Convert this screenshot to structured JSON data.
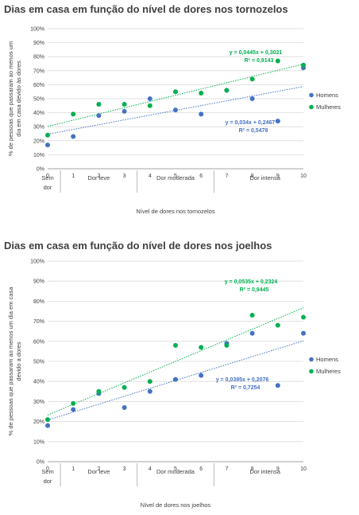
{
  "chart_data": [
    {
      "type": "scatter",
      "title": "Dias em casa em função do nível de dores nos tornozelos",
      "xlabel": "Nível de dores nos tornozelos",
      "ylabel": "% de pessoas que passaram ao menos um dia em casa devido às dores",
      "xlim": [
        0,
        10
      ],
      "ylim": [
        0,
        100
      ],
      "y_ticks": [
        "0%",
        "10%",
        "20%",
        "30%",
        "40%",
        "50%",
        "60%",
        "70%",
        "80%",
        "90%",
        "100%"
      ],
      "x_ticks": [
        "0",
        "1",
        "2",
        "3",
        "4",
        "5",
        "6",
        "7",
        "8",
        "9",
        "10"
      ],
      "categories": [
        "Sem dor",
        "Dor leve",
        "Dor moderada",
        "Dor intensa"
      ],
      "grid": true,
      "legend": "right",
      "series": [
        {
          "name": "Homens",
          "color": "#4472C4",
          "x": [
            0,
            1,
            2,
            3,
            4,
            5,
            6,
            7,
            8,
            9,
            10
          ],
          "y": [
            17,
            23,
            38,
            41,
            50,
            42,
            39,
            56,
            50,
            34,
            72
          ],
          "equation": "y = 0,034x + 0,2467",
          "r2": "R² = 0,5478",
          "trend": [
            0.034,
            0.2467
          ]
        },
        {
          "name": "Mulheres",
          "color": "#00B050",
          "x": [
            0,
            1,
            2,
            3,
            4,
            5,
            6,
            7,
            8,
            9,
            10
          ],
          "y": [
            24,
            39,
            46,
            46,
            45,
            55,
            54,
            56,
            64,
            77,
            74
          ],
          "equation": "y = 0,0445x + 0,3021",
          "r2": "R² = 0,9143",
          "trend": [
            0.0445,
            0.3021
          ]
        }
      ]
    },
    {
      "type": "scatter",
      "title": "Dias em casa em função do nível de dores nos joelhos",
      "xlabel": "Nível de dores nos joelhos",
      "ylabel": "% de pessoas que passaram ao menos um dia em casa devido a dores",
      "xlim": [
        0,
        10
      ],
      "ylim": [
        0,
        100
      ],
      "y_ticks": [
        "0%",
        "10%",
        "20%",
        "30%",
        "40%",
        "50%",
        "60%",
        "70%",
        "80%",
        "90%",
        "100%"
      ],
      "x_ticks": [
        "0",
        "1",
        "2",
        "3",
        "4",
        "5",
        "6",
        "7",
        "8",
        "9",
        "10"
      ],
      "categories": [
        "Sem dor",
        "Dor leve",
        "Dor moderada",
        "Dor intensa"
      ],
      "grid": true,
      "legend": "right",
      "series": [
        {
          "name": "Homens",
          "color": "#4472C4",
          "x": [
            0,
            1,
            2,
            3,
            4,
            5,
            6,
            7,
            8,
            9,
            10
          ],
          "y": [
            18,
            26,
            34,
            27,
            35,
            41,
            43,
            59,
            64,
            38,
            64
          ],
          "equation": "y = 0,0395x + 0,2076",
          "r2": "R² = 0,7254",
          "trend": [
            0.0395,
            0.2076
          ]
        },
        {
          "name": "Mulheres",
          "color": "#00B050",
          "x": [
            0,
            1,
            2,
            3,
            4,
            5,
            6,
            7,
            8,
            9,
            10
          ],
          "y": [
            21,
            29,
            35,
            37,
            40,
            58,
            57,
            58,
            73,
            68,
            72
          ],
          "equation": "y = 0,0535x + 0,2324",
          "r2": "R² = 0,9445",
          "trend": [
            0.0535,
            0.2324
          ]
        }
      ]
    }
  ]
}
